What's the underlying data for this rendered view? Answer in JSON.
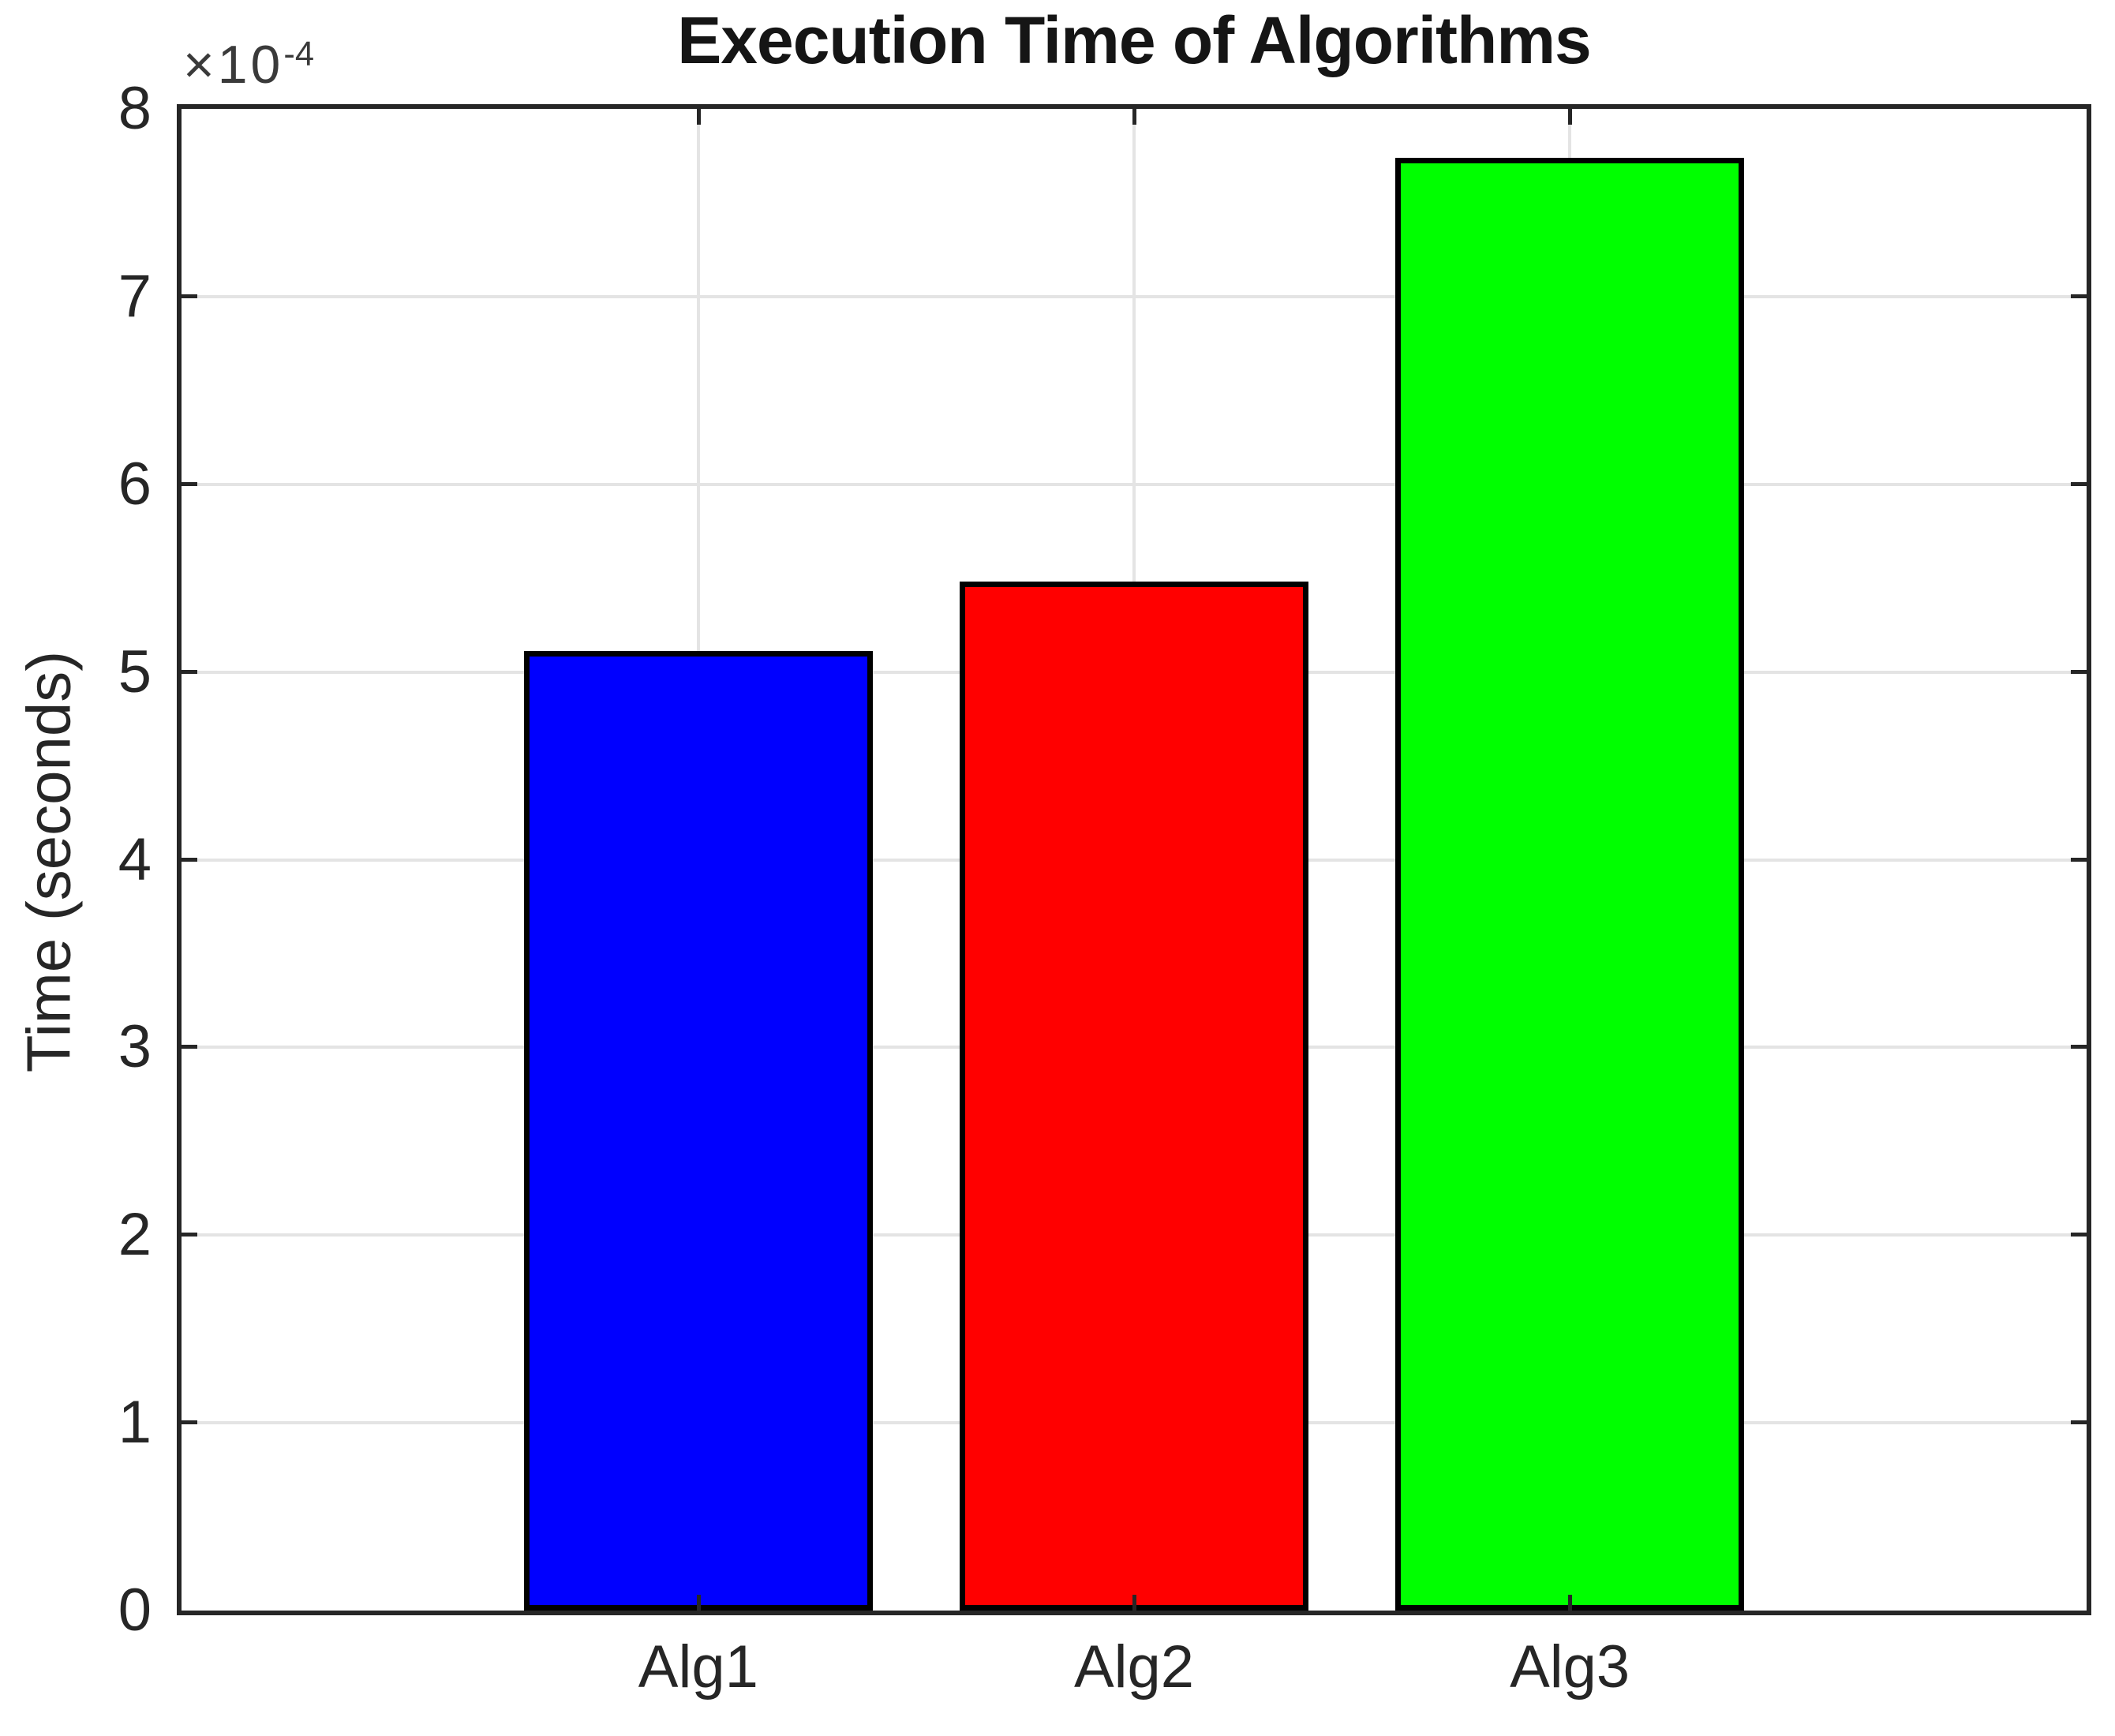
{
  "title": "Execution Time of Algorithms",
  "y_axis": {
    "label": "Time (seconds)",
    "exponent_base": "×10",
    "exponent_power": "-4",
    "tick_labels": [
      "0",
      "1",
      "2",
      "3",
      "4",
      "5",
      "6",
      "7",
      "8"
    ],
    "max_tick": 8
  },
  "x_axis": {
    "tick_labels": [
      "Alg1",
      "Alg2",
      "Alg3"
    ]
  },
  "chart_data": {
    "type": "bar",
    "title": "Execution Time of Algorithms",
    "categories": [
      "Alg1",
      "Alg2",
      "Alg3"
    ],
    "values": [
      0.000511,
      0.000548,
      0.000774
    ],
    "values_x1e4": [
      5.11,
      5.48,
      7.74
    ],
    "bar_colors": [
      "#0000ff",
      "#ff0000",
      "#00ff00"
    ],
    "bar_edge_color": "#000000",
    "xlabel": "",
    "ylabel": "Time (seconds)",
    "ylim": [
      0,
      0.0008
    ],
    "y_tick_step": 0.0001,
    "y_exponent": -4,
    "grid": true,
    "legend": "none"
  },
  "colors": {
    "background": "#ffffff",
    "axis": "#262626",
    "grid": "#e4e4e4",
    "title_text": "#151515"
  }
}
